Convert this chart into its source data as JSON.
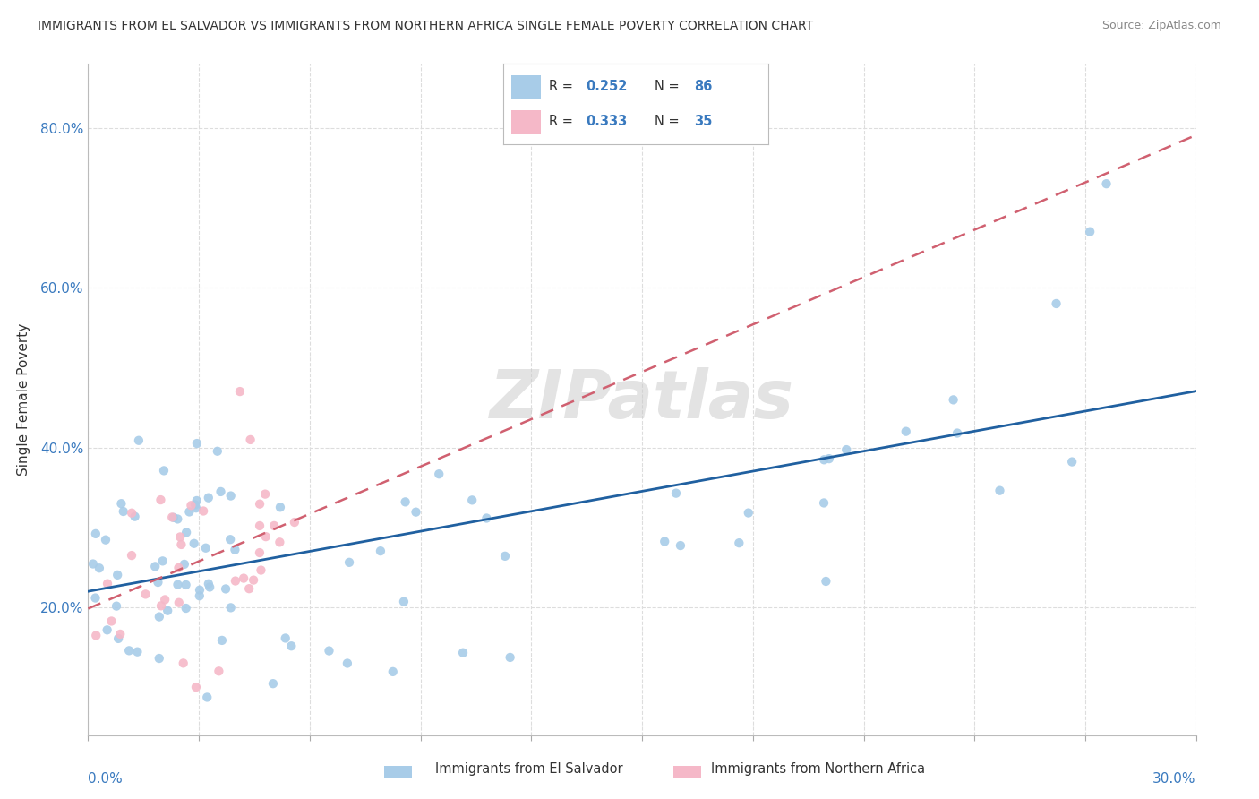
{
  "title": "IMMIGRANTS FROM EL SALVADOR VS IMMIGRANTS FROM NORTHERN AFRICA SINGLE FEMALE POVERTY CORRELATION CHART",
  "source": "Source: ZipAtlas.com",
  "ylabel": "Single Female Poverty",
  "xlim": [
    0.0,
    0.3
  ],
  "ylim": [
    0.04,
    0.88
  ],
  "yticks": [
    0.2,
    0.4,
    0.6,
    0.8
  ],
  "xticks_count": 11,
  "series1": {
    "label": "Immigrants from El Salvador",
    "color": "#a8cce8",
    "line_color": "#2060a0",
    "R": 0.252,
    "N": 86
  },
  "series2": {
    "label": "Immigrants from Northern Africa",
    "color": "#f5b8c8",
    "line_color": "#d06070",
    "R": 0.333,
    "N": 35
  },
  "watermark": "ZIPatlas",
  "background_color": "#ffffff",
  "grid_color": "#dddddd",
  "tick_color": "#3a7abf",
  "text_color": "#333333",
  "source_color": "#888888"
}
